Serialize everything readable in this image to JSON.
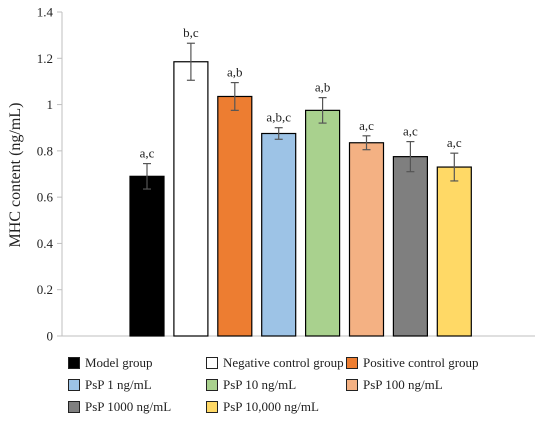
{
  "chart_data": {
    "type": "bar",
    "title": "",
    "xlabel": "",
    "ylabel": "MHC content (ng/mL)",
    "ylim": [
      0,
      1.4
    ],
    "yticks": [
      "0",
      "0.2",
      "0.4",
      "0.6",
      "0.8",
      "1",
      "1.2",
      "1.4"
    ],
    "grid": false,
    "legend_position": "bottom",
    "categories": [
      "Model group",
      "Negative control group",
      "Positive control group",
      "PsP 1 ng/mL",
      "PsP 10 ng/mL",
      "PsP 100 ng/mL",
      "PsP 1000 ng/mL",
      "PsP 10,000 ng/mL"
    ],
    "values": [
      0.69,
      1.185,
      1.035,
      0.875,
      0.975,
      0.835,
      0.775,
      0.73
    ],
    "errors": [
      0.055,
      0.08,
      0.06,
      0.025,
      0.055,
      0.03,
      0.065,
      0.06
    ],
    "significance_labels": [
      "a,c",
      "b,c",
      "a,b",
      "a,b,c",
      "a,b",
      "a,c",
      "a,c",
      "a,c"
    ],
    "colors": [
      "#000000",
      "#ffffff",
      "#ed7d31",
      "#9dc3e6",
      "#a9d18e",
      "#f4b183",
      "#7f7f7f",
      "#ffd966"
    ]
  }
}
